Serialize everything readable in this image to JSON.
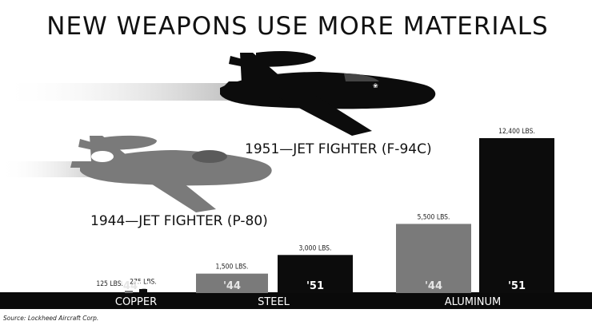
{
  "chart_data": {
    "type": "bar",
    "title": "NEW WEAPONS USE MORE MATERIALS",
    "categories": [
      "COPPER",
      "STEEL",
      "ALUMINUM"
    ],
    "series": [
      {
        "name": "1944—JET FIGHTER (P-80)",
        "short": "'44",
        "color": "#7a7a7a",
        "values": [
          125,
          1500,
          5500
        ],
        "labels": [
          "125 LBS.",
          "1,500 LBS.",
          "5,500 LBS."
        ]
      },
      {
        "name": "1951—JET FIGHTER (F-94C)",
        "short": "'51",
        "color": "#0c0c0c",
        "values": [
          275,
          3000,
          12400
        ],
        "labels": [
          "275 LBS.",
          "3,000 LBS.",
          "12,400 LBS."
        ]
      }
    ],
    "ylim": [
      0,
      12400
    ],
    "source": "Source: Lockheed Aircraft Corp."
  },
  "colors": {
    "old": "#7a7a7a",
    "new": "#0c0c0c",
    "baseline": "#0a0a0a"
  }
}
